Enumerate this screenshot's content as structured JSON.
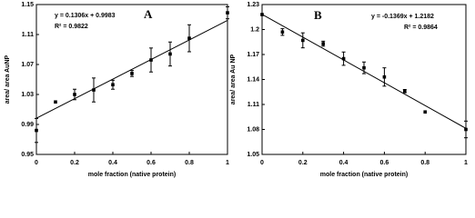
{
  "chart_data": [
    {
      "type": "scatter",
      "title": "A",
      "xlabel": "mole fraction (native protein)",
      "ylabel": "area/ area AuNP",
      "annotations": [
        "y = 0.1306x + 0.9983",
        "R² = 0.9822"
      ],
      "trendline": {
        "slope": 0.1306,
        "intercept": 0.9983
      },
      "x": [
        0,
        0.1,
        0.2,
        0.3,
        0.4,
        0.5,
        0.6,
        0.7,
        0.8,
        1
      ],
      "values": [
        0.982,
        1.02,
        1.03,
        1.036,
        1.043,
        1.058,
        1.076,
        1.084,
        1.105,
        1.139
      ],
      "errors": [
        0.016,
        null,
        0.007,
        0.016,
        0.006,
        0.004,
        0.016,
        0.016,
        0.018,
        0.008
      ],
      "color": "#000000",
      "xlim": [
        0,
        1
      ],
      "ylim": [
        0.95,
        1.15
      ],
      "xticks": [
        0,
        0.2,
        0.4,
        0.6,
        0.8,
        1
      ],
      "yticks": [
        0.95,
        0.99,
        1.03,
        1.07,
        1.11,
        1.15
      ]
    },
    {
      "type": "scatter",
      "title": "B",
      "xlabel": "mole fraction (native protein)",
      "ylabel": "area/ area Au NP",
      "annotations": [
        "y = -0.1369x + 1.2182",
        "R² = 0.9864"
      ],
      "trendline": {
        "slope": -0.1369,
        "intercept": 1.2182
      },
      "x": [
        0,
        0.1,
        0.2,
        0.3,
        0.4,
        0.5,
        0.6,
        0.7,
        0.8,
        1
      ],
      "values": [
        1.218,
        1.197,
        1.187,
        1.183,
        1.165,
        1.154,
        1.143,
        1.126,
        1.101,
        1.08
      ],
      "errors": [
        null,
        0.004,
        0.009,
        0.003,
        0.008,
        0.007,
        0.011,
        0.002,
        null,
        0.01
      ],
      "color": "#000000",
      "xlim": [
        0,
        1
      ],
      "ylim": [
        1.05,
        1.23
      ],
      "xticks": [
        0,
        0.2,
        0.4,
        0.6,
        0.8,
        1
      ],
      "yticks": [
        1.05,
        1.08,
        1.11,
        1.14,
        1.17,
        1.2,
        1.23
      ]
    }
  ]
}
